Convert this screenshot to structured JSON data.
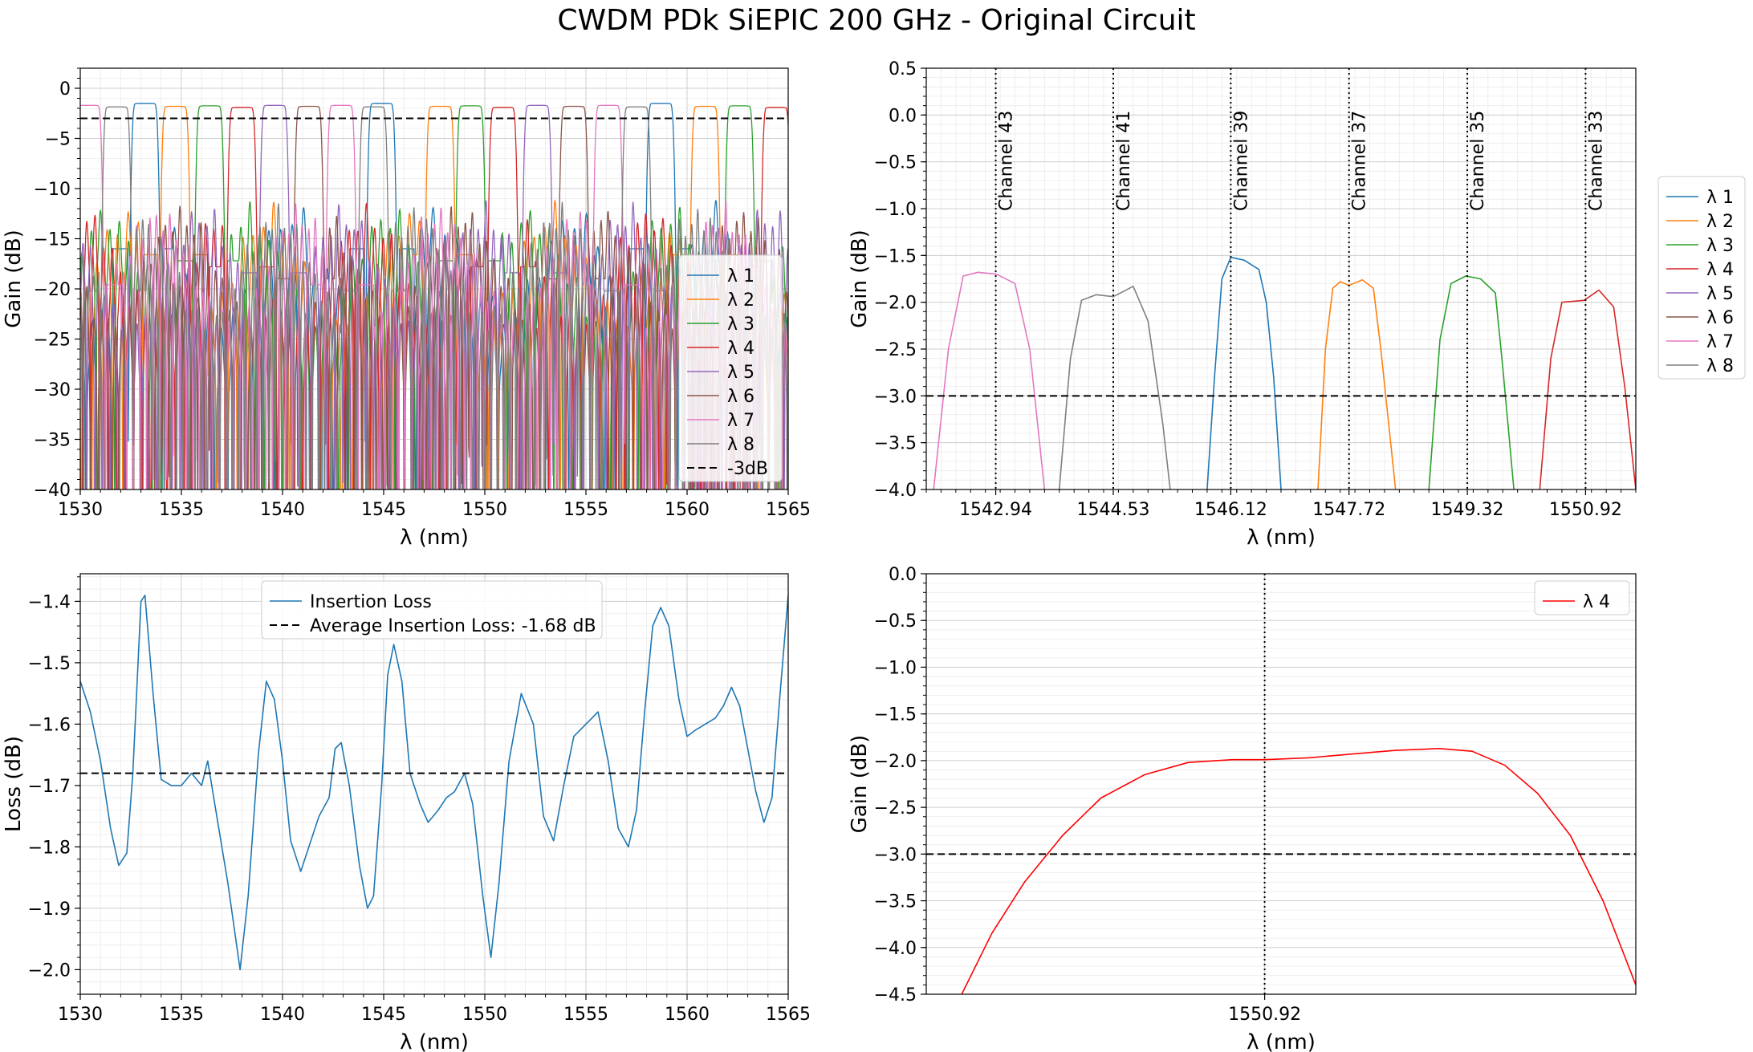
{
  "figure": {
    "title": "CWDM PDk SiEPIC 200 GHz - Original Circuit",
    "colors": {
      "λ1": "#1f77b4",
      "λ2": "#ff7f0e",
      "λ3": "#2ca02c",
      "λ4": "#d62728",
      "λ5": "#9467bd",
      "λ6": "#8c564b",
      "λ7": "#e377c2",
      "λ8": "#7f7f7f",
      "reference_line": "#000000",
      "single_channel": "#ff0000"
    }
  },
  "chart_data": [
    {
      "id": "all_channels",
      "type": "line",
      "xlabel": "λ (nm)",
      "ylabel": "Gain (dB)",
      "xlim": [
        1530,
        1565
      ],
      "ylim": [
        -40,
        2
      ],
      "xticks": [
        "1530",
        "1535",
        "1540",
        "1545",
        "1550",
        "1555",
        "1560",
        "1565"
      ],
      "yticks": [
        "0",
        "−5",
        "−10",
        "−15",
        "−20",
        "−25",
        "−30",
        "−35",
        "−40"
      ],
      "grid": true,
      "legend_position": "right",
      "series": [
        {
          "name": "λ 1",
          "color": "#1f77b4",
          "centers": [
            1533.2,
            1544.9,
            1558.7
          ],
          "peak": -1.5
        },
        {
          "name": "λ 2",
          "color": "#ff7f0e",
          "centers": [
            1534.7,
            1547.8,
            1560.9
          ],
          "peak": -1.8
        },
        {
          "name": "λ 3",
          "color": "#2ca02c",
          "centers": [
            1536.4,
            1549.3,
            1562.6
          ],
          "peak": -1.75
        },
        {
          "name": "λ 4",
          "color": "#d62728",
          "centers": [
            1538.0,
            1550.9,
            1564.4
          ],
          "peak": -1.9
        },
        {
          "name": "λ 5",
          "color": "#9467bd",
          "centers": [
            1539.6,
            1552.6
          ],
          "peak": -1.7
        },
        {
          "name": "λ 6",
          "color": "#8c564b",
          "centers": [
            1541.3,
            1554.4
          ],
          "peak": -1.8
        },
        {
          "name": "λ 7",
          "color": "#e377c2",
          "centers": [
            1530.4,
            1542.9,
            1556.1
          ],
          "peak": -1.7
        },
        {
          "name": "λ 8",
          "color": "#7f7f7f",
          "centers": [
            1531.8,
            1544.5,
            1557.5
          ],
          "peak": -1.85
        }
      ],
      "reference": {
        "name": "-3dB",
        "y": -3
      }
    },
    {
      "id": "channel_zoom",
      "type": "line",
      "xlabel": "λ (nm)",
      "ylabel": "Gain (dB)",
      "xlim": [
        1542.0,
        1551.6
      ],
      "ylim": [
        -4.0,
        0.5
      ],
      "xticks": [
        "1542.94",
        "1544.53",
        "1546.12",
        "1547.72",
        "1549.32",
        "1550.92"
      ],
      "yticks": [
        "0.5",
        "0.0",
        "−0.5",
        "−1.0",
        "−1.5",
        "−2.0",
        "−2.5",
        "−3.0",
        "−3.5",
        "−4.0"
      ],
      "grid": true,
      "legend_position": "outside right",
      "channels": [
        {
          "label": "Channel 43",
          "x": 1542.94
        },
        {
          "label": "Channel 41",
          "x": 1544.53
        },
        {
          "label": "Channel 39",
          "x": 1546.12
        },
        {
          "label": "Channel 37",
          "x": 1547.72
        },
        {
          "label": "Channel 35",
          "x": 1549.32
        },
        {
          "label": "Channel 33",
          "x": 1550.92
        }
      ],
      "series": [
        {
          "name": "λ 1",
          "color": "#1f77b4",
          "points": [
            [
              1545.8,
              -4.0
            ],
            [
              1545.9,
              -2.8
            ],
            [
              1546.0,
              -1.75
            ],
            [
              1546.12,
              -1.52
            ],
            [
              1546.3,
              -1.55
            ],
            [
              1546.5,
              -1.65
            ],
            [
              1546.6,
              -2.0
            ],
            [
              1546.7,
              -2.8
            ],
            [
              1546.8,
              -4.0
            ]
          ]
        },
        {
          "name": "λ 2",
          "color": "#ff7f0e",
          "points": [
            [
              1547.3,
              -4.0
            ],
            [
              1547.4,
              -2.5
            ],
            [
              1547.5,
              -1.85
            ],
            [
              1547.6,
              -1.78
            ],
            [
              1547.72,
              -1.82
            ],
            [
              1547.9,
              -1.76
            ],
            [
              1548.05,
              -1.85
            ],
            [
              1548.15,
              -2.5
            ],
            [
              1548.35,
              -4.0
            ]
          ]
        },
        {
          "name": "λ 3",
          "color": "#2ca02c",
          "points": [
            [
              1548.8,
              -4.0
            ],
            [
              1548.95,
              -2.4
            ],
            [
              1549.1,
              -1.8
            ],
            [
              1549.3,
              -1.72
            ],
            [
              1549.5,
              -1.75
            ],
            [
              1549.7,
              -1.9
            ],
            [
              1549.8,
              -2.7
            ],
            [
              1549.95,
              -4.0
            ]
          ]
        },
        {
          "name": "λ 4",
          "color": "#d62728",
          "points": [
            [
              1550.3,
              -4.0
            ],
            [
              1550.45,
              -2.6
            ],
            [
              1550.6,
              -2.0
            ],
            [
              1550.9,
              -1.98
            ],
            [
              1551.1,
              -1.87
            ],
            [
              1551.3,
              -2.05
            ],
            [
              1551.45,
              -2.9
            ],
            [
              1551.6,
              -4.0
            ]
          ]
        },
        {
          "name": "λ 5",
          "color": "#9467bd",
          "points": []
        },
        {
          "name": "λ 6",
          "color": "#8c564b",
          "points": []
        },
        {
          "name": "λ 7",
          "color": "#e377c2",
          "points": [
            [
              1542.1,
              -4.0
            ],
            [
              1542.3,
              -2.5
            ],
            [
              1542.5,
              -1.72
            ],
            [
              1542.7,
              -1.68
            ],
            [
              1542.95,
              -1.7
            ],
            [
              1543.2,
              -1.8
            ],
            [
              1543.4,
              -2.5
            ],
            [
              1543.6,
              -4.0
            ]
          ]
        },
        {
          "name": "λ 8",
          "color": "#7f7f7f",
          "points": [
            [
              1543.8,
              -4.0
            ],
            [
              1543.95,
              -2.6
            ],
            [
              1544.1,
              -1.98
            ],
            [
              1544.3,
              -1.92
            ],
            [
              1544.53,
              -1.94
            ],
            [
              1544.8,
              -1.83
            ],
            [
              1545.0,
              -2.2
            ],
            [
              1545.2,
              -3.3
            ],
            [
              1545.3,
              -4.0
            ]
          ]
        }
      ],
      "reference": {
        "y": -3
      }
    },
    {
      "id": "insertion_loss",
      "type": "line",
      "xlabel": "λ (nm)",
      "ylabel": "Loss (dB)",
      "xlim": [
        1530,
        1565
      ],
      "ylim": [
        -2.04,
        -1.355
      ],
      "xticks": [
        "1530",
        "1535",
        "1540",
        "1545",
        "1550",
        "1555",
        "1560",
        "1565"
      ],
      "yticks": [
        "−1.4",
        "−1.5",
        "−1.6",
        "−1.7",
        "−1.8",
        "−1.9",
        "−2.0"
      ],
      "grid": true,
      "legend_position": "upper center",
      "series": [
        {
          "name": "Insertion Loss",
          "color": "#1f77b4",
          "points": [
            [
              1530,
              -1.53
            ],
            [
              1530.5,
              -1.58
            ],
            [
              1531,
              -1.66
            ],
            [
              1531.5,
              -1.77
            ],
            [
              1531.9,
              -1.83
            ],
            [
              1532.3,
              -1.81
            ],
            [
              1532.6,
              -1.68
            ],
            [
              1533.0,
              -1.4
            ],
            [
              1533.2,
              -1.39
            ],
            [
              1533.6,
              -1.55
            ],
            [
              1534.0,
              -1.69
            ],
            [
              1534.5,
              -1.7
            ],
            [
              1535.0,
              -1.7
            ],
            [
              1535.5,
              -1.68
            ],
            [
              1536.0,
              -1.7
            ],
            [
              1536.3,
              -1.66
            ],
            [
              1536.6,
              -1.72
            ],
            [
              1537.3,
              -1.86
            ],
            [
              1537.9,
              -2.0
            ],
            [
              1538.3,
              -1.88
            ],
            [
              1538.8,
              -1.65
            ],
            [
              1539.2,
              -1.53
            ],
            [
              1539.6,
              -1.56
            ],
            [
              1540.0,
              -1.66
            ],
            [
              1540.4,
              -1.79
            ],
            [
              1540.9,
              -1.84
            ],
            [
              1541.3,
              -1.8
            ],
            [
              1541.8,
              -1.75
            ],
            [
              1542.3,
              -1.72
            ],
            [
              1542.6,
              -1.64
            ],
            [
              1542.9,
              -1.63
            ],
            [
              1543.3,
              -1.7
            ],
            [
              1543.8,
              -1.83
            ],
            [
              1544.2,
              -1.9
            ],
            [
              1544.5,
              -1.88
            ],
            [
              1544.9,
              -1.7
            ],
            [
              1545.2,
              -1.52
            ],
            [
              1545.5,
              -1.47
            ],
            [
              1545.9,
              -1.53
            ],
            [
              1546.3,
              -1.68
            ],
            [
              1546.8,
              -1.73
            ],
            [
              1547.2,
              -1.76
            ],
            [
              1547.7,
              -1.74
            ],
            [
              1548.1,
              -1.72
            ],
            [
              1548.5,
              -1.71
            ],
            [
              1549.0,
              -1.68
            ],
            [
              1549.4,
              -1.73
            ],
            [
              1549.9,
              -1.88
            ],
            [
              1550.3,
              -1.98
            ],
            [
              1550.7,
              -1.86
            ],
            [
              1551.2,
              -1.66
            ],
            [
              1551.8,
              -1.55
            ],
            [
              1552.4,
              -1.6
            ],
            [
              1552.9,
              -1.75
            ],
            [
              1553.4,
              -1.79
            ],
            [
              1553.9,
              -1.7
            ],
            [
              1554.4,
              -1.62
            ],
            [
              1555.0,
              -1.6
            ],
            [
              1555.6,
              -1.58
            ],
            [
              1556.1,
              -1.66
            ],
            [
              1556.6,
              -1.77
            ],
            [
              1557.1,
              -1.8
            ],
            [
              1557.5,
              -1.74
            ],
            [
              1557.9,
              -1.58
            ],
            [
              1558.3,
              -1.44
            ],
            [
              1558.7,
              -1.41
            ],
            [
              1559.1,
              -1.44
            ],
            [
              1559.6,
              -1.56
            ],
            [
              1560.0,
              -1.62
            ],
            [
              1560.4,
              -1.61
            ],
            [
              1560.9,
              -1.6
            ],
            [
              1561.4,
              -1.59
            ],
            [
              1561.8,
              -1.57
            ],
            [
              1562.2,
              -1.54
            ],
            [
              1562.6,
              -1.57
            ],
            [
              1563.0,
              -1.64
            ],
            [
              1563.4,
              -1.71
            ],
            [
              1563.8,
              -1.76
            ],
            [
              1564.2,
              -1.72
            ],
            [
              1564.6,
              -1.55
            ],
            [
              1565,
              -1.39
            ]
          ]
        }
      ],
      "reference": {
        "name": "Average Insertion Loss: -1.68 dB",
        "y": -1.68
      }
    },
    {
      "id": "single_channel",
      "type": "line",
      "xlabel": "λ (nm)",
      "ylabel": "Gain (dB)",
      "xlim": [
        1550.3,
        1551.6
      ],
      "ylim": [
        -4.5,
        0.0
      ],
      "xticks": [
        "1550.92"
      ],
      "yticks": [
        "0.0",
        "−0.5",
        "−1.0",
        "−1.5",
        "−2.0",
        "−2.5",
        "−3.0",
        "−3.5",
        "−4.0",
        "−4.5"
      ],
      "grid": true,
      "legend_position": "upper right",
      "channel_x": 1550.92,
      "series": [
        {
          "name": "λ 4",
          "color": "#ff0000",
          "points": [
            [
              1550.365,
              -4.5
            ],
            [
              1550.42,
              -3.85
            ],
            [
              1550.48,
              -3.3
            ],
            [
              1550.55,
              -2.8
            ],
            [
              1550.62,
              -2.4
            ],
            [
              1550.7,
              -2.15
            ],
            [
              1550.78,
              -2.02
            ],
            [
              1550.86,
              -1.99
            ],
            [
              1550.92,
              -1.99
            ],
            [
              1551.0,
              -1.97
            ],
            [
              1551.08,
              -1.93
            ],
            [
              1551.16,
              -1.89
            ],
            [
              1551.24,
              -1.87
            ],
            [
              1551.3,
              -1.9
            ],
            [
              1551.36,
              -2.05
            ],
            [
              1551.42,
              -2.35
            ],
            [
              1551.48,
              -2.8
            ],
            [
              1551.54,
              -3.5
            ],
            [
              1551.6,
              -4.4
            ]
          ]
        }
      ],
      "reference": {
        "y": -3
      }
    }
  ]
}
